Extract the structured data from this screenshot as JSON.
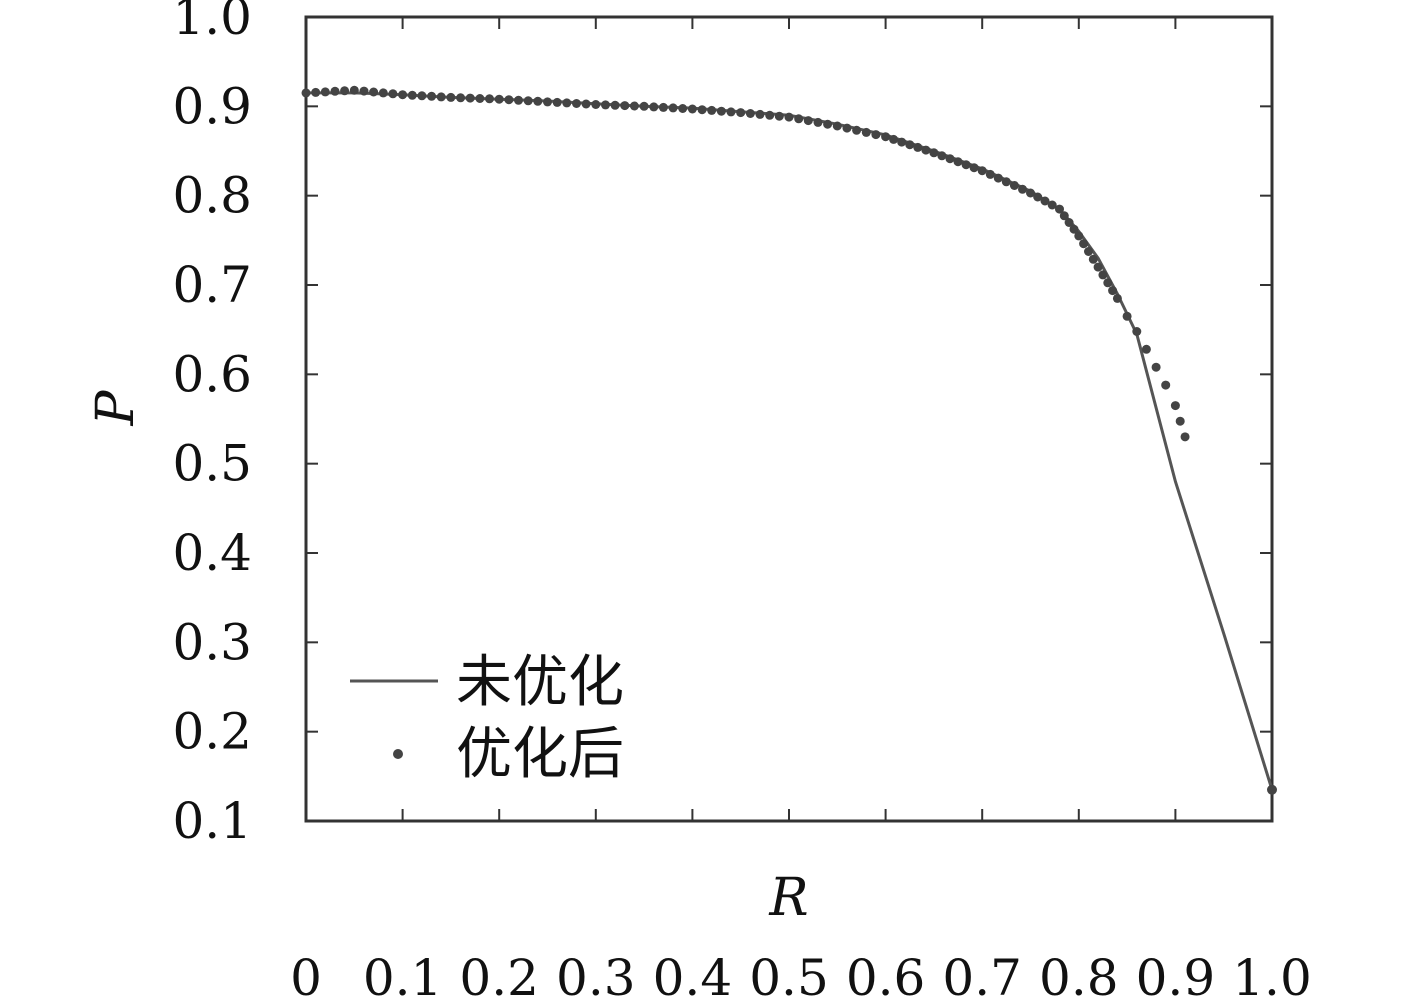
{
  "chart_data": {
    "type": "line",
    "xlabel": "R",
    "ylabel": "P",
    "xlim": [
      0,
      1.0
    ],
    "ylim": [
      0.1,
      1.0
    ],
    "grid": false,
    "legend_position": "bottom-left",
    "xticks": [
      "0",
      "0.1",
      "0.2",
      "0.3",
      "0.4",
      "0.5",
      "0.6",
      "0.7",
      "0.8",
      "0.9",
      "1.0"
    ],
    "yticks": [
      "0.1",
      "0.2",
      "0.3",
      "0.4",
      "0.5",
      "0.6",
      "0.7",
      "0.8",
      "0.9",
      "1.0"
    ],
    "series": [
      {
        "name": "未优化",
        "style": "line",
        "color": "#555555",
        "x": [
          0,
          0.05,
          0.1,
          0.15,
          0.2,
          0.25,
          0.3,
          0.35,
          0.4,
          0.45,
          0.5,
          0.55,
          0.6,
          0.65,
          0.7,
          0.75,
          0.78,
          0.8,
          0.82,
          0.84,
          0.86,
          0.9,
          0.95,
          1.0
        ],
        "y": [
          0.915,
          0.915,
          0.913,
          0.91,
          0.908,
          0.906,
          0.903,
          0.9,
          0.898,
          0.894,
          0.89,
          0.88,
          0.868,
          0.85,
          0.83,
          0.805,
          0.785,
          0.76,
          0.73,
          0.69,
          0.645,
          0.48,
          0.31,
          0.135
        ]
      },
      {
        "name": "优化后",
        "style": "markers",
        "color": "#444444",
        "x": [
          0,
          0.05,
          0.1,
          0.15,
          0.2,
          0.25,
          0.3,
          0.35,
          0.4,
          0.45,
          0.5,
          0.55,
          0.6,
          0.65,
          0.7,
          0.75,
          0.78,
          0.8,
          0.82,
          0.84,
          0.85,
          0.86,
          0.87,
          0.88,
          0.89,
          0.9,
          0.91
        ],
        "y": [
          0.915,
          0.918,
          0.913,
          0.91,
          0.908,
          0.905,
          0.902,
          0.9,
          0.897,
          0.893,
          0.888,
          0.878,
          0.866,
          0.848,
          0.828,
          0.803,
          0.785,
          0.755,
          0.72,
          0.685,
          0.665,
          0.648,
          0.628,
          0.608,
          0.588,
          0.565,
          0.53
        ]
      }
    ]
  }
}
